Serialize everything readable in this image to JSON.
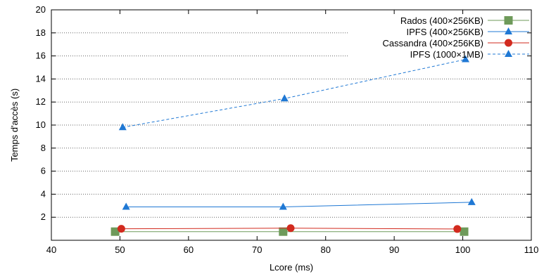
{
  "chart_data": {
    "type": "line",
    "xlabel": "Lcore (ms)",
    "ylabel": "Temps d'accès (s)",
    "xlim": [
      40,
      110
    ],
    "ylim": [
      0,
      20
    ],
    "x_ticks": [
      40,
      50,
      60,
      70,
      80,
      90,
      100,
      110
    ],
    "y_ticks": [
      2,
      4,
      6,
      8,
      10,
      12,
      14,
      16,
      18,
      20
    ],
    "grid": "horizontal dotted",
    "legend_position": "top-right",
    "series": [
      {
        "name": "Rados (400×256KB)",
        "color": "#6e9a5a",
        "marker": "square",
        "line": "solid",
        "points": [
          [
            49.3,
            0.75
          ],
          [
            73.8,
            0.75
          ],
          [
            100.2,
            0.75
          ]
        ]
      },
      {
        "name": "IPFS (400×256KB)",
        "color": "#1f78d4",
        "marker": "triangle",
        "line": "solid",
        "points": [
          [
            50.9,
            2.9
          ],
          [
            73.8,
            2.9
          ],
          [
            101.3,
            3.3
          ]
        ]
      },
      {
        "name": "Cassandra (400×256KB)",
        "color": "#d22a1e",
        "marker": "circle",
        "line": "solid",
        "points": [
          [
            50.2,
            1.0
          ],
          [
            74.9,
            1.05
          ],
          [
            99.2,
            0.98
          ]
        ]
      },
      {
        "name": "IPFS (1000×1MB)",
        "color": "#1f78d4",
        "marker": "triangle",
        "line": "dashed",
        "points": [
          [
            50.4,
            9.8
          ],
          [
            74.0,
            12.3
          ],
          [
            100.4,
            15.7
          ]
        ]
      }
    ]
  }
}
